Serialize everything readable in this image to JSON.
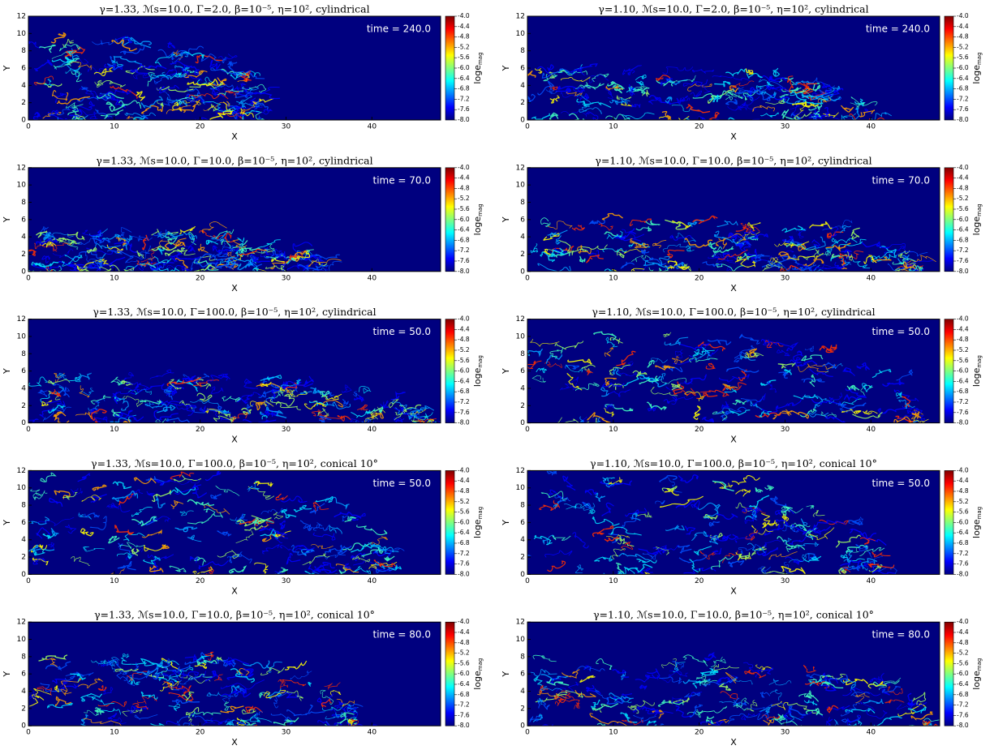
{
  "chart_data": [
    {
      "type": "heatmap",
      "title": "γ=1.33, ℳs=10.0, Γ=2.0, β=10⁻⁵, η=10², cylindrical",
      "annotation": "time = 240.0",
      "xlabel": "X",
      "ylabel": "Y",
      "xlim": [
        0,
        48
      ],
      "ylim": [
        0,
        12
      ],
      "xticks": [
        0,
        10,
        20,
        30,
        40
      ],
      "yticks": [
        0,
        2,
        4,
        6,
        8,
        10,
        12
      ],
      "colorbar_label": {
        "label": "loge",
        "subscript": "mag"
      },
      "clim": [
        -8,
        -4
      ],
      "cticks": [
        {
          "value": -4,
          "label": "-4.0"
        },
        {
          "value": -4.4,
          "label": "-4.4"
        },
        {
          "value": -4.8,
          "label": "-4.8"
        },
        {
          "value": -5.2,
          "label": "-5.2"
        },
        {
          "value": -5.6,
          "label": "-5.6"
        },
        {
          "value": -6,
          "label": "-6.0"
        },
        {
          "value": -6.4,
          "label": "-6.4"
        },
        {
          "value": -6.8,
          "label": "-6.8"
        },
        {
          "value": -7.2,
          "label": "-7.2"
        },
        {
          "value": -7.6,
          "label": "-7.6"
        },
        {
          "value": -8,
          "label": "-8.0"
        }
      ]
    },
    {
      "type": "heatmap",
      "title": "γ=1.10, ℳs=10.0, Γ=2.0, β=10⁻⁵, η=10², cylindrical",
      "annotation": "time = 240.0",
      "xlabel": "X",
      "ylabel": "Y",
      "xlim": [
        0,
        48
      ],
      "ylim": [
        0,
        12
      ],
      "xticks": [
        0,
        10,
        20,
        30,
        40
      ],
      "yticks": [
        0,
        2,
        4,
        6,
        8,
        10,
        12
      ],
      "colorbar_label": {
        "label": "loge",
        "subscript": "mag"
      },
      "clim": [
        -8,
        -4
      ],
      "cticks": [
        {
          "value": -4,
          "label": "-4.0"
        },
        {
          "value": -4.4,
          "label": "-4.4"
        },
        {
          "value": -4.8,
          "label": "-4.8"
        },
        {
          "value": -5.2,
          "label": "-5.2"
        },
        {
          "value": -5.6,
          "label": "-5.6"
        },
        {
          "value": -6,
          "label": "-6.0"
        },
        {
          "value": -6.4,
          "label": "-6.4"
        },
        {
          "value": -6.8,
          "label": "-6.8"
        },
        {
          "value": -7.2,
          "label": "-7.2"
        },
        {
          "value": -7.6,
          "label": "-7.6"
        },
        {
          "value": -8,
          "label": "-8.0"
        }
      ]
    },
    {
      "type": "heatmap",
      "title": "γ=1.33, ℳs=10.0, Γ=10.0, β=10⁻⁵, η=10², cylindrical",
      "annotation": "time =  70.0",
      "xlabel": "X",
      "ylabel": "Y",
      "xlim": [
        0,
        48
      ],
      "ylim": [
        0,
        12
      ],
      "xticks": [
        0,
        10,
        20,
        30,
        40
      ],
      "yticks": [
        0,
        2,
        4,
        6,
        8,
        10,
        12
      ],
      "colorbar_label": {
        "label": "loge",
        "subscript": "mag"
      },
      "clim": [
        -8,
        -4
      ],
      "cticks": [
        {
          "value": -4,
          "label": "-4.0"
        },
        {
          "value": -4.4,
          "label": "-4.4"
        },
        {
          "value": -4.8,
          "label": "-4.8"
        },
        {
          "value": -5.2,
          "label": "-5.2"
        },
        {
          "value": -5.6,
          "label": "-5.6"
        },
        {
          "value": -6,
          "label": "-6.0"
        },
        {
          "value": -6.4,
          "label": "-6.4"
        },
        {
          "value": -6.8,
          "label": "-6.8"
        },
        {
          "value": -7.2,
          "label": "-7.2"
        },
        {
          "value": -7.6,
          "label": "-7.6"
        },
        {
          "value": -8,
          "label": "-8.0"
        }
      ]
    },
    {
      "type": "heatmap",
      "title": "γ=1.10, ℳs=10.0, Γ=10.0, β=10⁻⁵, η=10², cylindrical",
      "annotation": "time =  70.0",
      "xlabel": "X",
      "ylabel": "Y",
      "xlim": [
        0,
        48
      ],
      "ylim": [
        0,
        12
      ],
      "xticks": [
        0,
        10,
        20,
        30,
        40
      ],
      "yticks": [
        0,
        2,
        4,
        6,
        8,
        10,
        12
      ],
      "colorbar_label": {
        "label": "loge",
        "subscript": "mag"
      },
      "clim": [
        -8,
        -4
      ],
      "cticks": [
        {
          "value": -4,
          "label": "-4.0"
        },
        {
          "value": -4.4,
          "label": "-4.4"
        },
        {
          "value": -4.8,
          "label": "-4.8"
        },
        {
          "value": -5.2,
          "label": "-5.2"
        },
        {
          "value": -5.6,
          "label": "-5.6"
        },
        {
          "value": -6,
          "label": "-6.0"
        },
        {
          "value": -6.4,
          "label": "-6.4"
        },
        {
          "value": -6.8,
          "label": "-6.8"
        },
        {
          "value": -7.2,
          "label": "-7.2"
        },
        {
          "value": -7.6,
          "label": "-7.6"
        },
        {
          "value": -8,
          "label": "-8.0"
        }
      ]
    },
    {
      "type": "heatmap",
      "title": "γ=1.33, ℳs=10.0, Γ=100.0, β=10⁻⁵, η=10², cylindrical",
      "annotation": "time =  50.0",
      "xlabel": "X",
      "ylabel": "Y",
      "xlim": [
        0,
        48
      ],
      "ylim": [
        0,
        12
      ],
      "xticks": [
        0,
        10,
        20,
        30,
        40
      ],
      "yticks": [
        0,
        2,
        4,
        6,
        8,
        10,
        12
      ],
      "colorbar_label": {
        "label": "loge",
        "subscript": "mag"
      },
      "clim": [
        -8,
        -4
      ],
      "cticks": [
        {
          "value": -4,
          "label": "-4.0"
        },
        {
          "value": -4.4,
          "label": "-4.4"
        },
        {
          "value": -4.8,
          "label": "-4.8"
        },
        {
          "value": -5.2,
          "label": "-5.2"
        },
        {
          "value": -5.6,
          "label": "-5.6"
        },
        {
          "value": -6,
          "label": "-6.0"
        },
        {
          "value": -6.4,
          "label": "-6.4"
        },
        {
          "value": -6.8,
          "label": "-6.8"
        },
        {
          "value": -7.2,
          "label": "-7.2"
        },
        {
          "value": -7.6,
          "label": "-7.6"
        },
        {
          "value": -8,
          "label": "-8.0"
        }
      ]
    },
    {
      "type": "heatmap",
      "title": "γ=1.10, ℳs=10.0, Γ=100.0, β=10⁻⁵, η=10², cylindrical",
      "annotation": "time =  50.0",
      "xlabel": "X",
      "ylabel": "Y",
      "xlim": [
        0,
        48
      ],
      "ylim": [
        0,
        12
      ],
      "xticks": [
        0,
        10,
        20,
        30,
        40
      ],
      "yticks": [
        0,
        2,
        4,
        6,
        8,
        10,
        12
      ],
      "colorbar_label": {
        "label": "loge",
        "subscript": "mag"
      },
      "clim": [
        -8,
        -4
      ],
      "cticks": [
        {
          "value": -4,
          "label": "-4.0"
        },
        {
          "value": -4.4,
          "label": "-4.4"
        },
        {
          "value": -4.8,
          "label": "-4.8"
        },
        {
          "value": -5.2,
          "label": "-5.2"
        },
        {
          "value": -5.6,
          "label": "-5.6"
        },
        {
          "value": -6,
          "label": "-6.0"
        },
        {
          "value": -6.4,
          "label": "-6.4"
        },
        {
          "value": -6.8,
          "label": "-6.8"
        },
        {
          "value": -7.2,
          "label": "-7.2"
        },
        {
          "value": -7.6,
          "label": "-7.6"
        },
        {
          "value": -8,
          "label": "-8.0"
        }
      ]
    },
    {
      "type": "heatmap",
      "title": "γ=1.33, ℳs=10.0, Γ=100.0, β=10⁻⁵, η=10², conical 10°",
      "annotation": "time =  50.0",
      "xlabel": "X",
      "ylabel": "Y",
      "xlim": [
        0,
        48
      ],
      "ylim": [
        0,
        12
      ],
      "xticks": [
        0,
        10,
        20,
        30,
        40
      ],
      "yticks": [
        0,
        2,
        4,
        6,
        8,
        10,
        12
      ],
      "colorbar_label": {
        "label": "loge",
        "subscript": "mag"
      },
      "clim": [
        -8,
        -4
      ],
      "cticks": [
        {
          "value": -4,
          "label": "-4.0"
        },
        {
          "value": -4.4,
          "label": "-4.4"
        },
        {
          "value": -4.8,
          "label": "-4.8"
        },
        {
          "value": -5.2,
          "label": "-5.2"
        },
        {
          "value": -5.6,
          "label": "-5.6"
        },
        {
          "value": -6,
          "label": "-6.0"
        },
        {
          "value": -6.4,
          "label": "-6.4"
        },
        {
          "value": -6.8,
          "label": "-6.8"
        },
        {
          "value": -7.2,
          "label": "-7.2"
        },
        {
          "value": -7.6,
          "label": "-7.6"
        },
        {
          "value": -8,
          "label": "-8.0"
        }
      ]
    },
    {
      "type": "heatmap",
      "title": "γ=1.10, ℳs=10.0, Γ=100.0, β=10⁻⁵, η=10², conical 10°",
      "annotation": "time =  50.0",
      "xlabel": "X",
      "ylabel": "Y",
      "xlim": [
        0,
        48
      ],
      "ylim": [
        0,
        12
      ],
      "xticks": [
        0,
        10,
        20,
        30,
        40
      ],
      "yticks": [
        0,
        2,
        4,
        6,
        8,
        10,
        12
      ],
      "colorbar_label": {
        "label": "loge",
        "subscript": "mag"
      },
      "clim": [
        -8,
        -4
      ],
      "cticks": [
        {
          "value": -4,
          "label": "-4.0"
        },
        {
          "value": -4.4,
          "label": "-4.4"
        },
        {
          "value": -4.8,
          "label": "-4.8"
        },
        {
          "value": -5.2,
          "label": "-5.2"
        },
        {
          "value": -5.6,
          "label": "-5.6"
        },
        {
          "value": -6,
          "label": "-6.0"
        },
        {
          "value": -6.4,
          "label": "-6.4"
        },
        {
          "value": -6.8,
          "label": "-6.8"
        },
        {
          "value": -7.2,
          "label": "-7.2"
        },
        {
          "value": -7.6,
          "label": "-7.6"
        },
        {
          "value": -8,
          "label": "-8.0"
        }
      ]
    },
    {
      "type": "heatmap",
      "title": "γ=1.33, ℳs=10.0, Γ=10.0, β=10⁻⁵, η=10², conical 10°",
      "annotation": "time =  80.0",
      "xlabel": "X",
      "ylabel": "Y",
      "xlim": [
        0,
        48
      ],
      "ylim": [
        0,
        12
      ],
      "xticks": [
        0,
        10,
        20,
        30,
        40
      ],
      "yticks": [
        0,
        2,
        4,
        6,
        8,
        10,
        12
      ],
      "colorbar_label": {
        "label": "loge",
        "subscript": "mag"
      },
      "clim": [
        -8,
        -4
      ],
      "cticks": [
        {
          "value": -4,
          "label": "-4.0"
        },
        {
          "value": -4.4,
          "label": "-4.4"
        },
        {
          "value": -4.8,
          "label": "-4.8"
        },
        {
          "value": -5.2,
          "label": "-5.2"
        },
        {
          "value": -5.6,
          "label": "-5.6"
        },
        {
          "value": -6,
          "label": "-6.0"
        },
        {
          "value": -6.4,
          "label": "-6.4"
        },
        {
          "value": -6.8,
          "label": "-6.8"
        },
        {
          "value": -7.2,
          "label": "-7.2"
        },
        {
          "value": -7.6,
          "label": "-7.6"
        },
        {
          "value": -8,
          "label": "-8.0"
        }
      ]
    },
    {
      "type": "heatmap",
      "title": "γ=1.10, ℳs=10.0, Γ=10.0, β=10⁻⁵, η=10², conical 10°",
      "annotation": "time =  80.0",
      "xlabel": "X",
      "ylabel": "Y",
      "xlim": [
        0,
        48
      ],
      "ylim": [
        0,
        12
      ],
      "xticks": [
        0,
        10,
        20,
        30,
        40
      ],
      "yticks": [
        0,
        2,
        4,
        6,
        8,
        10,
        12
      ],
      "colorbar_label": {
        "label": "loge",
        "subscript": "mag"
      },
      "clim": [
        -8,
        -4
      ],
      "cticks": [
        {
          "value": -4,
          "label": "-4.0"
        },
        {
          "value": -4.4,
          "label": "-4.4"
        },
        {
          "value": -4.8,
          "label": "-4.8"
        },
        {
          "value": -5.2,
          "label": "-5.2"
        },
        {
          "value": -5.6,
          "label": "-5.6"
        },
        {
          "value": -6,
          "label": "-6.0"
        },
        {
          "value": -6.4,
          "label": "-6.4"
        },
        {
          "value": -6.8,
          "label": "-6.8"
        },
        {
          "value": -7.2,
          "label": "-7.2"
        },
        {
          "value": -7.6,
          "label": "-7.6"
        },
        {
          "value": -8,
          "label": "-8.0"
        }
      ]
    }
  ]
}
